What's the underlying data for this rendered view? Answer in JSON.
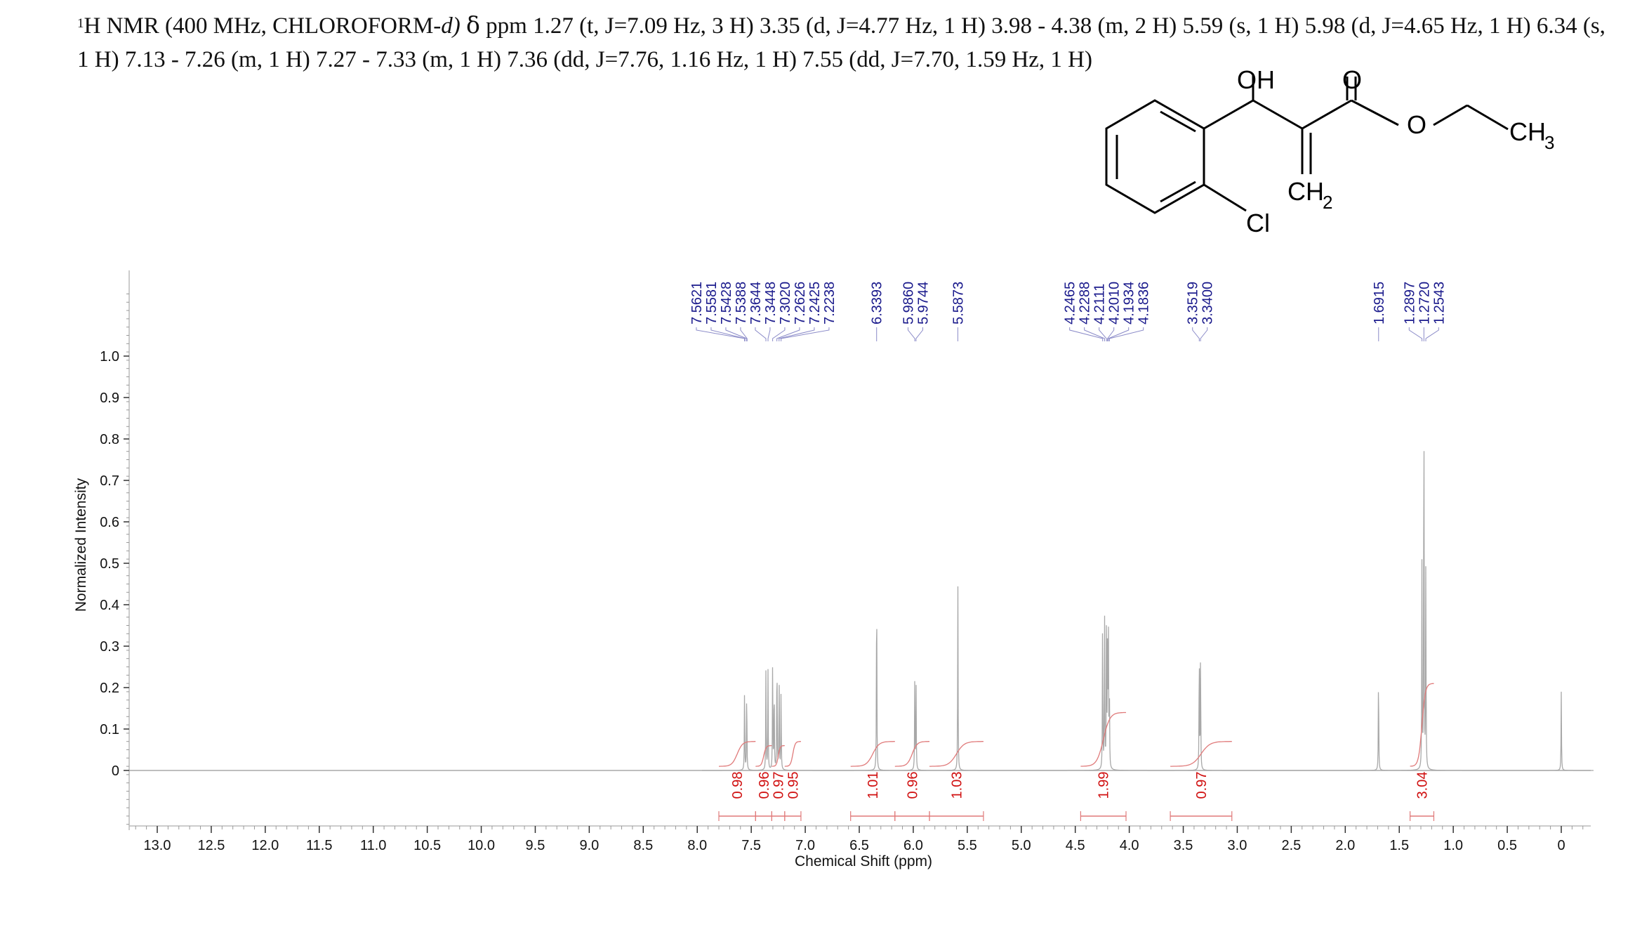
{
  "header": {
    "nucleus_sup": "1",
    "pre": "H NMR (400 MHz, CHLOROFORM-",
    "solvent_suffix": "d)",
    "delta": "δ",
    "post": " ppm 1.27 (t, J=7.09 Hz, 3 H) 3.35 (d, J=4.77 Hz, 1 H) 3.98 - 4.38 (m, 2 H) 5.59 (s, 1 H) 5.98 (d, J=4.65 Hz, 1 H) 6.34 (s, 1 H) 7.13 - 7.26 (m, 1 H) 7.27 - 7.33 (m, 1 H) 7.36 (dd, J=7.76, 1.16 Hz, 1 H) 7.55 (dd, J=7.70, 1.59 Hz, 1 H)"
  },
  "molecule": {
    "labels": {
      "oh": "OH",
      "o_carbonyl": "O",
      "o_ester": "O",
      "ch3": "CH",
      "ch3_sub": "3",
      "ch2": "CH",
      "ch2_sub": "2",
      "cl": "Cl"
    }
  },
  "colors": {
    "spectrum": "#a8a8a8",
    "integral": "#e07a7a",
    "integral_text": "#d01010",
    "peak_label": "#1a1a8c",
    "peak_leader": "#8a8ac8",
    "axis": "#333333"
  },
  "chart_data": {
    "type": "line",
    "title": "",
    "xlabel": "Chemical Shift (ppm)",
    "ylabel": "Normalized Intensity",
    "x_reversed": true,
    "xlim": [
      13.25,
      -0.25
    ],
    "ylim": [
      -0.27,
      1.17
    ],
    "x_ticks": [
      "13.0",
      "12.5",
      "12.0",
      "11.5",
      "11.0",
      "10.5",
      "10.0",
      "9.5",
      "9.0",
      "8.5",
      "8.0",
      "7.5",
      "7.0",
      "6.5",
      "6.0",
      "5.5",
      "5.0",
      "4.5",
      "4.0",
      "3.5",
      "3.0",
      "2.5",
      "2.0",
      "1.5",
      "1.0",
      "0.5",
      "0"
    ],
    "y_ticks": [
      "0",
      "0.1",
      "0.2",
      "0.3",
      "0.4",
      "0.5",
      "0.6",
      "0.7",
      "0.8",
      "0.9",
      "1.0"
    ],
    "peak_labels": [
      {
        "label": "7.5621",
        "shift": 7.5621
      },
      {
        "label": "7.5581",
        "shift": 7.5581
      },
      {
        "label": "7.5428",
        "shift": 7.5428
      },
      {
        "label": "7.5388",
        "shift": 7.5388
      },
      {
        "label": "7.3644",
        "shift": 7.3644
      },
      {
        "label": "7.3448",
        "shift": 7.3448
      },
      {
        "label": "7.3020",
        "shift": 7.302
      },
      {
        "label": "7.2626",
        "shift": 7.2626
      },
      {
        "label": "7.2425",
        "shift": 7.2425
      },
      {
        "label": "7.2238",
        "shift": 7.2238
      },
      {
        "label": "6.3393",
        "shift": 6.3393
      },
      {
        "label": "5.9860",
        "shift": 5.986
      },
      {
        "label": "5.9744",
        "shift": 5.9744
      },
      {
        "label": "5.5873",
        "shift": 5.5873
      },
      {
        "label": "4.2465",
        "shift": 4.2465
      },
      {
        "label": "4.2288",
        "shift": 4.2288
      },
      {
        "label": "4.2111",
        "shift": 4.2111
      },
      {
        "label": "4.2010",
        "shift": 4.201
      },
      {
        "label": "4.1934",
        "shift": 4.1934
      },
      {
        "label": "4.1836",
        "shift": 4.1836
      },
      {
        "label": "3.3519",
        "shift": 3.3519
      },
      {
        "label": "3.3400",
        "shift": 3.34
      },
      {
        "label": "1.6915",
        "shift": 1.6915
      },
      {
        "label": "1.2897",
        "shift": 1.2897
      },
      {
        "label": "1.2720",
        "shift": 1.272
      },
      {
        "label": "1.2543",
        "shift": 1.2543
      }
    ],
    "peaks": [
      {
        "shift": 7.562,
        "height": 0.2
      },
      {
        "shift": 7.542,
        "height": 0.21
      },
      {
        "shift": 7.364,
        "height": 0.25
      },
      {
        "shift": 7.345,
        "height": 0.24
      },
      {
        "shift": 7.302,
        "height": 0.27
      },
      {
        "shift": 7.288,
        "height": 0.22
      },
      {
        "shift": 7.262,
        "height": 0.3
      },
      {
        "shift": 7.242,
        "height": 0.24
      },
      {
        "shift": 7.224,
        "height": 0.2
      },
      {
        "shift": 6.339,
        "height": 0.5
      },
      {
        "shift": 5.986,
        "height": 0.22
      },
      {
        "shift": 5.974,
        "height": 0.21
      },
      {
        "shift": 5.587,
        "height": 0.45
      },
      {
        "shift": 4.247,
        "height": 0.36
      },
      {
        "shift": 4.229,
        "height": 0.4
      },
      {
        "shift": 4.211,
        "height": 0.39
      },
      {
        "shift": 4.201,
        "height": 0.36
      },
      {
        "shift": 4.193,
        "height": 0.32
      },
      {
        "shift": 4.184,
        "height": 0.2
      },
      {
        "shift": 3.352,
        "height": 0.31
      },
      {
        "shift": 3.34,
        "height": 0.3
      },
      {
        "shift": 1.692,
        "height": 0.25
      },
      {
        "shift": 1.29,
        "height": 0.5
      },
      {
        "shift": 1.272,
        "height": 1.0
      },
      {
        "shift": 1.254,
        "height": 0.5
      },
      {
        "shift": 0.0,
        "height": 0.19
      }
    ],
    "integrals": [
      {
        "label": "0.98",
        "from": 7.8,
        "to": 7.46,
        "height": 0.07
      },
      {
        "label": "0.96",
        "from": 7.46,
        "to": 7.31,
        "height": 0.06
      },
      {
        "label": "0.97",
        "from": 7.31,
        "to": 7.19,
        "height": 0.06
      },
      {
        "label": "0.95",
        "from": 7.19,
        "to": 7.04,
        "height": 0.07
      },
      {
        "label": "1.01",
        "from": 6.58,
        "to": 6.17,
        "height": 0.07
      },
      {
        "label": "0.96",
        "from": 6.17,
        "to": 5.85,
        "height": 0.07
      },
      {
        "label": "1.03",
        "from": 5.85,
        "to": 5.35,
        "height": 0.07
      },
      {
        "label": "1.99",
        "from": 4.45,
        "to": 4.03,
        "height": 0.14
      },
      {
        "label": "0.97",
        "from": 3.62,
        "to": 3.05,
        "height": 0.07
      },
      {
        "label": "3.04",
        "from": 1.4,
        "to": 1.18,
        "height": 0.21
      }
    ]
  }
}
